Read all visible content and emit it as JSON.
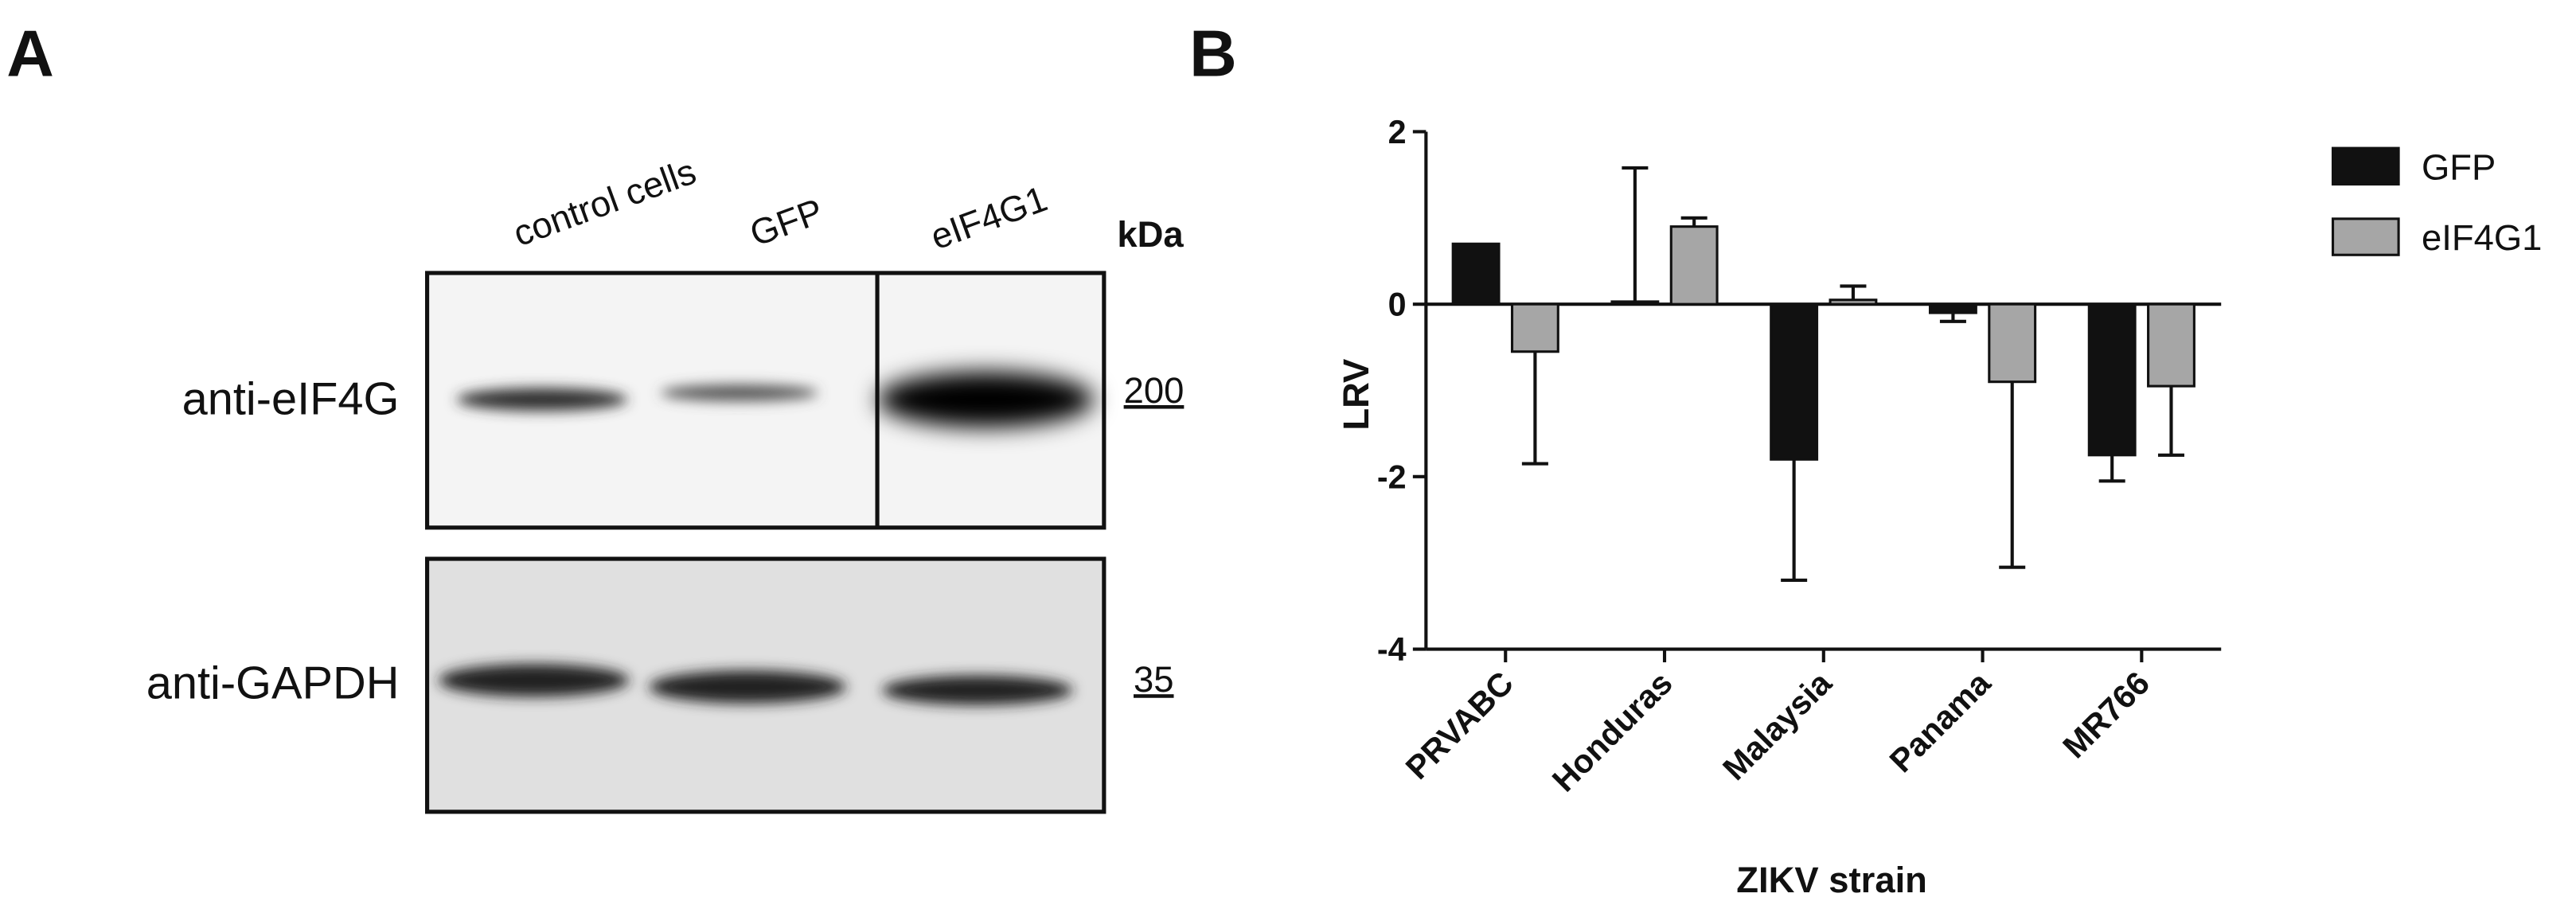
{
  "panel_a": {
    "panel_label": "A",
    "lanes": [
      "control cells",
      "GFP",
      "eIF4G1"
    ],
    "unit_label": "kDa",
    "blots": [
      {
        "antibody": "anti-eIF4G",
        "marker": "200"
      },
      {
        "antibody": "anti-GAPDH",
        "marker": "35"
      }
    ]
  },
  "chart_data": {
    "type": "bar",
    "panel_label": "B",
    "x_label": "ZIKV strain",
    "y_label": "LRV",
    "categories": [
      "PRVABC",
      "Honduras",
      "Malaysia",
      "Panama",
      "MR766"
    ],
    "series": [
      {
        "name": "GFP",
        "color": "#111111",
        "values": [
          0.7,
          0.03,
          -1.8,
          -0.1,
          -1.75
        ],
        "errors": [
          null,
          1.55,
          1.4,
          0.1,
          0.3
        ]
      },
      {
        "name": "eIF4G1",
        "color": "#a6a6a6",
        "values": [
          -0.55,
          0.9,
          0.05,
          -0.9,
          -0.95
        ],
        "errors": [
          1.3,
          0.1,
          0.16,
          2.15,
          0.8
        ]
      }
    ],
    "ylim": [
      -4,
      2
    ],
    "yticks": [
      2,
      0,
      -2,
      -4
    ],
    "grid": false,
    "legend": "right"
  }
}
